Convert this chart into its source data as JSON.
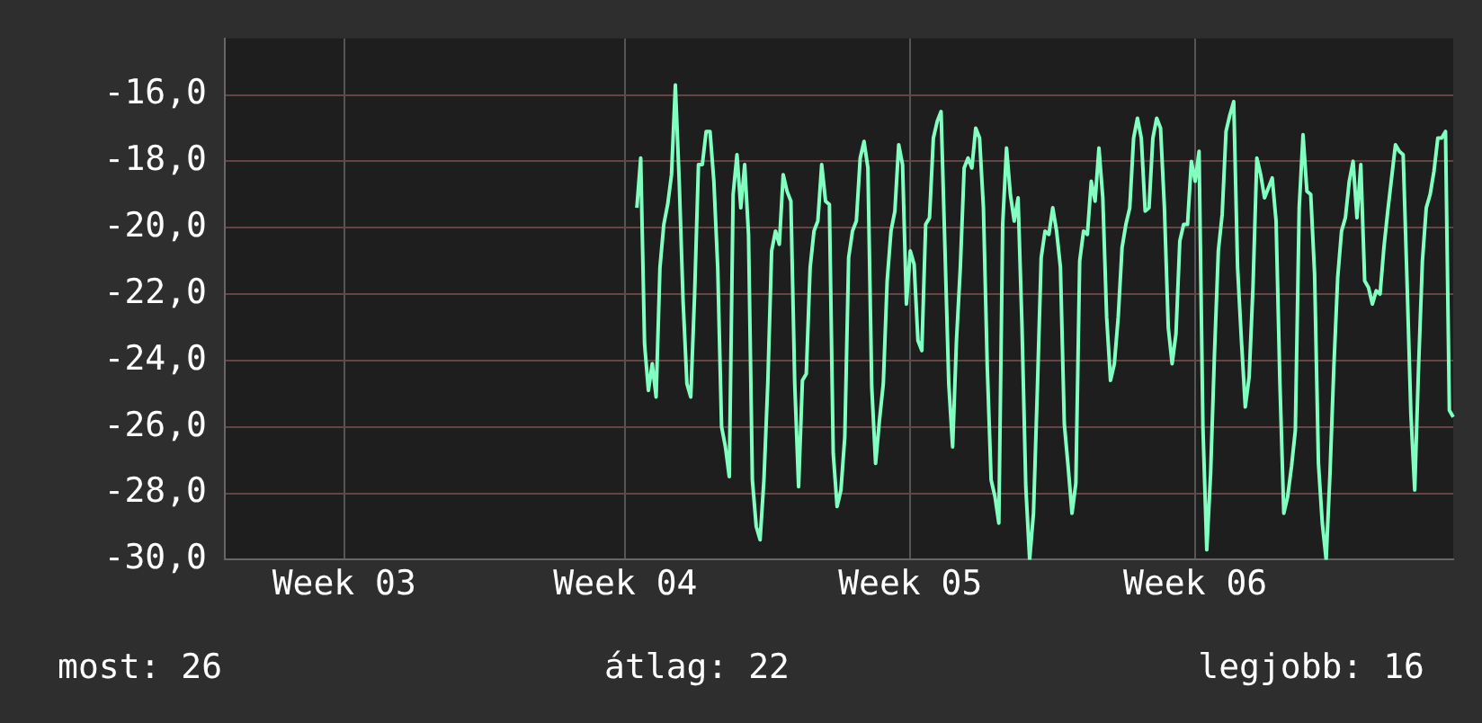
{
  "chart_data": {
    "type": "line",
    "color": "#80ffc0",
    "grid": true,
    "legend": false,
    "marker": "none",
    "line_style": "solid",
    "annotations": [
      "most: 26",
      "átlag: 22",
      "legjobb: 16"
    ],
    "ylim": [
      -30,
      -14.3
    ],
    "yticks": [
      {
        "value": -30,
        "label": "-30,0"
      },
      {
        "value": -28,
        "label": "-28,0"
      },
      {
        "value": -26,
        "label": "-26,0"
      },
      {
        "value": -24,
        "label": "-24,0"
      },
      {
        "value": -22,
        "label": "-22,0"
      },
      {
        "value": -20,
        "label": "-20,0"
      },
      {
        "value": -18,
        "label": "-18,0"
      },
      {
        "value": -16,
        "label": "-16,0"
      }
    ],
    "categories": [
      null,
      null,
      null,
      null,
      null,
      null,
      null,
      null,
      null,
      null,
      null,
      null,
      null,
      null,
      null,
      null,
      null,
      null,
      null,
      null,
      null,
      null,
      null,
      null,
      null,
      null,
      null,
      null,
      null,
      null,
      null,
      "Week 03",
      null,
      null,
      null,
      null,
      null,
      null,
      null,
      null,
      null,
      null,
      null,
      null,
      null,
      null,
      null,
      null,
      null,
      null,
      null,
      null,
      null,
      null,
      null,
      null,
      null,
      null,
      null,
      null,
      null,
      null,
      null,
      null,
      null,
      null,
      null,
      null,
      null,
      null,
      null,
      null,
      null,
      null,
      null,
      null,
      null,
      null,
      null,
      null,
      null,
      null,
      null,
      null,
      null,
      null,
      null,
      null,
      null,
      null,
      null,
      null,
      null,
      null,
      null,
      null,
      null,
      null,
      null,
      null,
      null,
      null,
      null,
      null,
      "Week 04",
      null,
      null,
      null,
      null,
      null,
      null,
      null,
      null,
      null,
      null,
      null,
      null,
      null,
      null,
      null,
      null,
      null,
      null,
      null,
      null,
      null,
      null,
      null,
      null,
      null,
      null,
      null,
      null,
      null,
      null,
      null,
      null,
      null,
      null,
      null,
      null,
      null,
      null,
      null,
      null,
      null,
      null,
      null,
      null,
      null,
      null,
      null,
      null,
      null,
      null,
      null,
      null,
      null,
      null,
      null,
      null,
      null,
      null,
      null,
      null,
      null,
      null,
      null,
      null,
      null,
      null,
      null,
      null,
      null,
      null,
      null,
      null,
      null,
      "Week 05",
      null,
      null,
      null,
      null,
      null,
      null,
      null,
      null,
      null,
      null,
      null,
      null,
      null,
      null,
      null,
      null,
      null,
      null,
      null,
      null,
      null,
      null,
      null,
      null,
      null,
      null,
      null,
      null,
      null,
      null,
      null,
      null,
      null,
      null,
      null,
      null,
      null,
      null,
      null,
      null,
      null,
      null,
      null,
      null,
      null,
      null,
      null,
      null,
      null,
      null,
      null,
      null,
      null,
      null,
      null,
      null,
      null,
      null,
      null,
      null,
      null,
      null,
      null,
      null,
      null,
      null,
      null,
      null,
      null,
      null,
      null,
      null,
      null,
      "Week 06",
      null,
      null,
      null,
      null,
      null,
      null,
      null,
      null,
      null,
      null,
      null,
      null,
      null,
      null,
      null,
      null,
      null,
      null,
      null,
      null,
      null,
      null,
      null,
      null,
      null,
      null,
      null,
      null,
      null,
      null,
      null,
      null,
      null,
      null,
      null,
      null,
      null,
      null,
      null,
      null,
      null,
      null,
      null,
      null,
      null,
      null,
      null,
      null,
      null,
      null,
      null,
      null,
      null,
      null,
      null,
      null,
      null,
      null,
      null,
      null,
      null,
      null,
      null,
      null,
      null,
      null,
      null
    ],
    "values": [
      null,
      null,
      null,
      null,
      null,
      null,
      null,
      null,
      null,
      null,
      null,
      null,
      null,
      null,
      null,
      null,
      null,
      null,
      null,
      null,
      null,
      null,
      null,
      null,
      null,
      null,
      null,
      null,
      null,
      null,
      null,
      null,
      null,
      null,
      null,
      null,
      null,
      null,
      null,
      null,
      null,
      null,
      null,
      null,
      null,
      null,
      null,
      null,
      null,
      null,
      null,
      null,
      null,
      null,
      null,
      null,
      null,
      null,
      null,
      null,
      null,
      null,
      null,
      null,
      null,
      null,
      null,
      null,
      null,
      null,
      null,
      null,
      null,
      null,
      null,
      null,
      null,
      null,
      null,
      null,
      null,
      null,
      null,
      null,
      null,
      null,
      null,
      null,
      null,
      null,
      null,
      null,
      null,
      null,
      null,
      null,
      null,
      null,
      null,
      null,
      null,
      null,
      null,
      null,
      null,
      null,
      null,
      -19.4,
      -17.9,
      -23.5,
      -24.9,
      -24.1,
      -25.1,
      -21.2,
      -19.9,
      -19.3,
      -18.4,
      -15.7,
      -18.6,
      -22.2,
      -24.7,
      -25.1,
      -22.0,
      -18.1,
      -18.1,
      -17.1,
      -17.1,
      -18.6,
      -21.2,
      -26.0,
      -26.6,
      -27.5,
      -19.0,
      -17.8,
      -19.4,
      -18.1,
      -20.2,
      -27.6,
      -29.0,
      -29.4,
      -27.6,
      -24.7,
      -20.7,
      -20.1,
      -20.5,
      -18.4,
      -18.9,
      -19.2,
      -24.7,
      -27.8,
      -24.6,
      -24.4,
      -21.2,
      -20.1,
      -19.8,
      -18.1,
      -19.2,
      -19.3,
      -26.8,
      -28.4,
      -27.9,
      -26.3,
      -20.9,
      -20.1,
      -19.8,
      -17.9,
      -17.4,
      -18.2,
      -24.8,
      -27.1,
      -25.8,
      -24.7,
      -21.6,
      -20.1,
      -19.5,
      -17.5,
      -18.1,
      -22.3,
      -20.7,
      -21.1,
      -23.4,
      -23.7,
      -19.9,
      -19.7,
      -17.3,
      -16.8,
      -16.5,
      -20.6,
      -24.7,
      -26.6,
      -23.4,
      -21.2,
      -18.2,
      -17.9,
      -18.2,
      -17.0,
      -17.3,
      -19.4,
      -24.2,
      -27.6,
      -28.1,
      -28.9,
      -19.9,
      -17.6,
      -19.0,
      -19.8,
      -19.1,
      -22.9,
      -27.8,
      -30.0,
      -28.6,
      -24.9,
      -20.9,
      -20.1,
      -20.2,
      -19.4,
      -20.1,
      -21.2,
      -25.9,
      -27.2,
      -28.6,
      -27.7,
      -21.0,
      -20.1,
      -20.2,
      -18.6,
      -19.2,
      -17.6,
      -19.1,
      -22.7,
      -24.6,
      -24.1,
      -22.7,
      -20.6,
      -19.9,
      -19.4,
      -17.3,
      -16.7,
      -17.3,
      -19.5,
      -19.4,
      -17.3,
      -16.7,
      -17.0,
      -19.4,
      -23.0,
      -24.1,
      -23.2,
      -20.4,
      -19.9,
      -19.9,
      -18.0,
      -18.6,
      -17.7,
      -26.0,
      -29.7,
      -27.4,
      -23.8,
      -20.7,
      -19.6,
      -17.1,
      -16.6,
      -16.2,
      -21.2,
      -23.4,
      -25.4,
      -24.5,
      -21.8,
      -17.9,
      -18.4,
      -19.1,
      -18.8,
      -18.5,
      -19.8,
      -24.7,
      -28.6,
      -28.1,
      -27.2,
      -26.1,
      -19.4,
      -17.2,
      -18.9,
      -19.0,
      -21.4,
      -27.1,
      -28.9,
      -30.0,
      -27.4,
      -24.2,
      -21.5,
      -20.1,
      -19.7,
      -18.6,
      -18.0,
      -19.7,
      -18.1,
      -21.6,
      -21.8,
      -22.3,
      -21.9,
      -22.0,
      -20.6,
      -19.5,
      -18.5,
      -17.5,
      -17.7,
      -17.8,
      -21.6,
      -25.6,
      -27.9,
      -24.2,
      -21.0,
      -19.4,
      -19.0,
      -18.3,
      -17.3,
      -17.3,
      -17.1,
      -25.5,
      -25.7
    ]
  }
}
